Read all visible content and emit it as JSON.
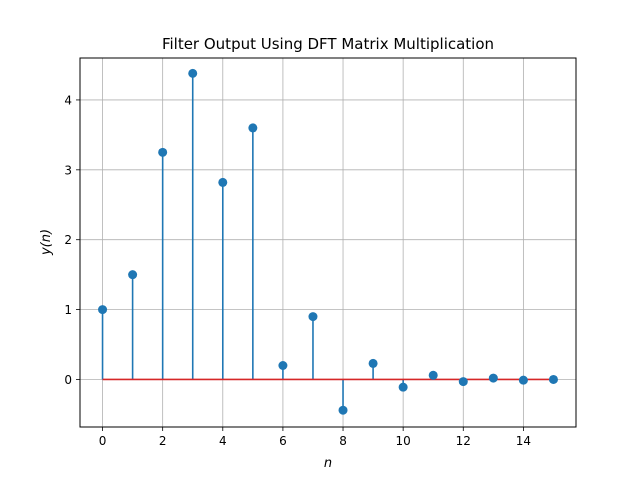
{
  "chart_data": {
    "type": "stem",
    "title": "Filter Output Using DFT Matrix Multiplication",
    "xlabel": "n",
    "ylabel": "y(n)",
    "x": [
      0,
      1,
      2,
      3,
      4,
      5,
      6,
      7,
      8,
      9,
      10,
      11,
      12,
      13,
      14,
      15
    ],
    "y": [
      1.0,
      1.5,
      3.25,
      4.38,
      2.82,
      3.6,
      0.2,
      0.9,
      -0.44,
      0.23,
      -0.11,
      0.06,
      -0.03,
      0.02,
      -0.01,
      0.0
    ],
    "xlim": [
      -0.75,
      15.75
    ],
    "ylim": [
      -0.68,
      4.6
    ],
    "xticks": [
      0,
      2,
      4,
      6,
      8,
      10,
      12,
      14
    ],
    "yticks": [
      0,
      1,
      2,
      3,
      4
    ],
    "grid": true,
    "colors": {
      "stem": "#1f77b4",
      "baseline": "#d62728",
      "grid": "#b0b0b0"
    }
  }
}
